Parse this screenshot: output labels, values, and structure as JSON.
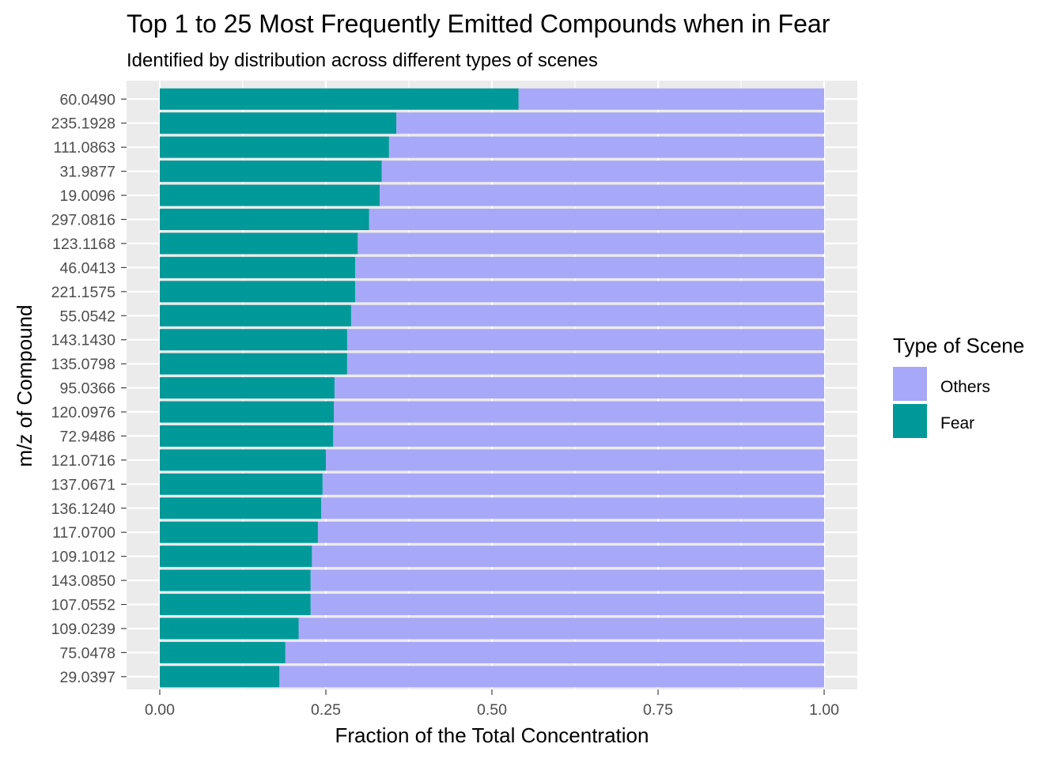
{
  "chart_data": {
    "type": "bar",
    "orientation": "horizontal",
    "stacked": true,
    "title": "Top 1 to 25 Most Frequently Emitted Compounds when in Fear",
    "subtitle": "Identified by distribution across different types of scenes",
    "xlabel": "Fraction of the Total Concentration",
    "ylabel": "m/z of Compound",
    "xlim": [
      0,
      1
    ],
    "xticks": [
      "0.00",
      "0.25",
      "0.50",
      "0.75",
      "1.00"
    ],
    "xtick_values": [
      0,
      0.25,
      0.5,
      0.75,
      1.0
    ],
    "grid": true,
    "legend_position": "right",
    "categories": [
      "60.0490",
      "235.1928",
      "111.0863",
      "31.9877",
      "19.0096",
      "297.0816",
      "123.1168",
      "46.0413",
      "221.1575",
      "55.0542",
      "143.1430",
      "135.0798",
      "95.0366",
      "120.0976",
      "72.9486",
      "121.0716",
      "137.0671",
      "136.1240",
      "117.0700",
      "109.1012",
      "143.0850",
      "107.0552",
      "109.0239",
      "75.0478",
      "29.0397"
    ],
    "legend": {
      "title": "Type of Scene",
      "entries": [
        {
          "label": "Others",
          "color": "#a8a8f8"
        },
        {
          "label": "Fear",
          "color": "#009999"
        }
      ]
    },
    "series": [
      {
        "name": "Fear",
        "color": "#009999",
        "values": [
          0.54,
          0.356,
          0.345,
          0.334,
          0.331,
          0.315,
          0.298,
          0.294,
          0.294,
          0.288,
          0.282,
          0.282,
          0.263,
          0.262,
          0.261,
          0.25,
          0.245,
          0.243,
          0.238,
          0.229,
          0.227,
          0.227,
          0.209,
          0.189,
          0.18
        ]
      },
      {
        "name": "Others",
        "color": "#a8a8f8",
        "values": [
          0.46,
          0.644,
          0.655,
          0.666,
          0.669,
          0.685,
          0.702,
          0.706,
          0.706,
          0.712,
          0.718,
          0.718,
          0.737,
          0.738,
          0.739,
          0.75,
          0.755,
          0.757,
          0.762,
          0.771,
          0.773,
          0.773,
          0.791,
          0.811,
          0.82
        ]
      }
    ]
  }
}
